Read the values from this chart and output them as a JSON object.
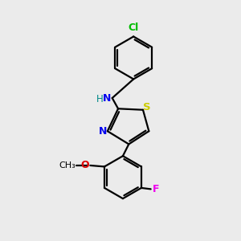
{
  "background_color": "#ebebeb",
  "bond_color": "#000000",
  "atom_colors": {
    "Cl": "#00bb00",
    "N": "#0000ee",
    "H": "#008888",
    "S": "#cccc00",
    "O": "#dd0000",
    "F": "#ee00ee"
  },
  "figsize": [
    3.0,
    3.0
  ],
  "dpi": 100
}
